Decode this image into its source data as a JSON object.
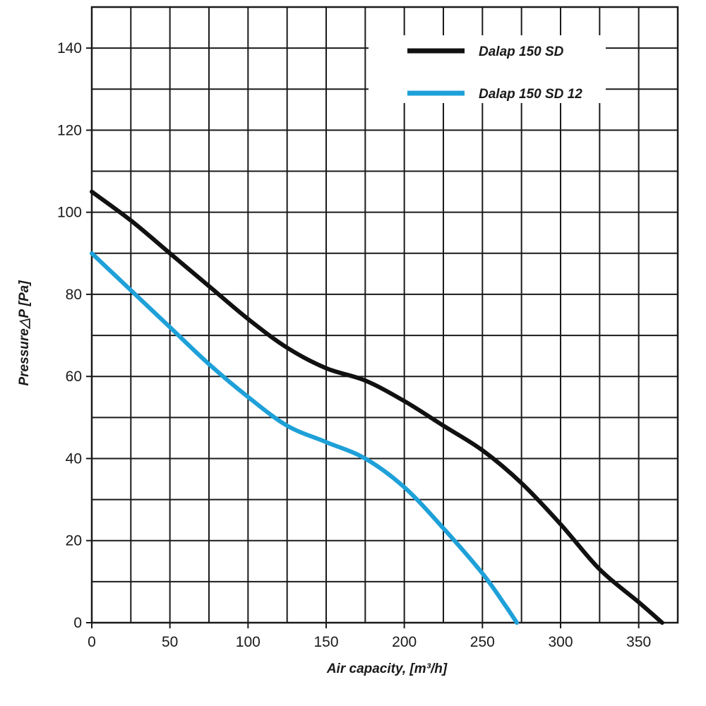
{
  "chart_data": {
    "type": "line",
    "title": "",
    "xlabel": "Air capacity, [m³/h]",
    "ylabel": "Pressure△P [Pa]",
    "xlim": [
      0,
      375
    ],
    "ylim": [
      0,
      150
    ],
    "x_ticks": [
      0,
      50,
      100,
      150,
      200,
      250,
      300,
      350
    ],
    "y_ticks": [
      0,
      20,
      40,
      60,
      80,
      100,
      120,
      140
    ],
    "x_tick_labels": [
      "0",
      "50",
      "100",
      "150",
      "200",
      "250",
      "300",
      "350"
    ],
    "y_tick_labels": [
      "0",
      "20",
      "40",
      "60",
      "80",
      "100",
      "120",
      "140"
    ],
    "grid": true,
    "grid_x_step": 25,
    "grid_y_step": 10,
    "legend_position": "top-right",
    "series": [
      {
        "name": "Dalap 150 SD",
        "color": "#111111",
        "x": [
          0,
          25,
          50,
          75,
          100,
          125,
          150,
          175,
          200,
          225,
          250,
          275,
          300,
          325,
          350,
          365
        ],
        "y": [
          105,
          98,
          90,
          82,
          74,
          67,
          62,
          59,
          54,
          48,
          42,
          34,
          24,
          13,
          5,
          0
        ]
      },
      {
        "name": "Dalap 150 SD 12",
        "color": "#1ea0d8",
        "x": [
          0,
          25,
          50,
          75,
          100,
          125,
          150,
          175,
          200,
          225,
          250,
          265,
          272
        ],
        "y": [
          90,
          81,
          72,
          63,
          55,
          48,
          44,
          40,
          33,
          23,
          12,
          4,
          0
        ]
      }
    ]
  }
}
